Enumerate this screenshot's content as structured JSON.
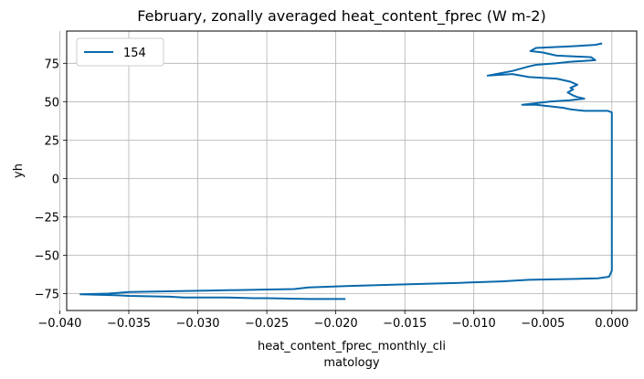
{
  "chart_data": {
    "type": "line",
    "title": "February, zonally averaged heat_content_fprec (W m-2)",
    "xlabel_lines": [
      "heat_content_fprec_monthly_cli",
      "matology"
    ],
    "ylabel": "yh",
    "xlim": [
      -0.0395,
      0.0018
    ],
    "ylim": [
      -86,
      96
    ],
    "x_ticks": [
      -0.04,
      -0.035,
      -0.03,
      -0.025,
      -0.02,
      -0.015,
      -0.01,
      -0.005,
      0.0
    ],
    "x_tick_labels": [
      "−0.040",
      "−0.035",
      "−0.030",
      "−0.025",
      "−0.020",
      "−0.015",
      "−0.010",
      "−0.005",
      "0.000"
    ],
    "y_ticks": [
      -75,
      -50,
      -25,
      0,
      25,
      50,
      75
    ],
    "y_tick_labels": [
      "−75",
      "−50",
      "−25",
      "0",
      "25",
      "50",
      "75"
    ],
    "grid": true,
    "legend_position": "top-left",
    "series": [
      {
        "name": "154",
        "color": "#0868ac",
        "x": [
          -0.0007,
          -0.0012,
          -0.003,
          -0.0055,
          -0.0059,
          -0.005,
          -0.004,
          -0.0015,
          -0.0012,
          -0.003,
          -0.004,
          -0.0055,
          -0.006,
          -0.0072,
          -0.009,
          -0.0072,
          -0.006,
          -0.004,
          -0.003,
          -0.0025,
          -0.003,
          -0.0028,
          -0.0032,
          -0.0028,
          -0.0025,
          -0.002,
          -0.003,
          -0.0045,
          -0.0055,
          -0.0065,
          -0.0055,
          -0.0045,
          -0.0035,
          -0.003,
          -0.002,
          -0.001,
          -0.0003,
          0.0,
          0.0,
          0.0,
          0.0,
          0.0,
          -0.0002,
          -0.001,
          -0.003,
          -0.006,
          -0.008,
          -0.011,
          -0.015,
          -0.019,
          -0.022,
          -0.023,
          -0.029,
          -0.035,
          -0.0365,
          -0.0385,
          -0.036,
          -0.035,
          -0.032,
          -0.031,
          -0.028,
          -0.026,
          -0.025,
          -0.022,
          -0.0193
        ],
        "y": [
          88,
          87,
          86,
          85,
          83,
          82,
          80,
          79,
          77,
          76,
          75,
          74,
          73,
          70,
          67,
          68,
          66,
          65,
          63,
          61,
          59,
          58,
          56,
          54,
          53,
          52,
          51,
          50,
          49,
          48,
          48,
          47,
          46,
          45,
          44,
          44,
          44,
          43,
          40,
          20,
          0,
          -60,
          -64,
          -65,
          -65.5,
          -66,
          -67,
          -68,
          -69,
          -70,
          -71,
          -72,
          -73,
          -74,
          -75,
          -75.5,
          -76,
          -76.5,
          -77,
          -77.5,
          -77.5,
          -78,
          -78,
          -78.5,
          -78.5
        ]
      }
    ]
  }
}
